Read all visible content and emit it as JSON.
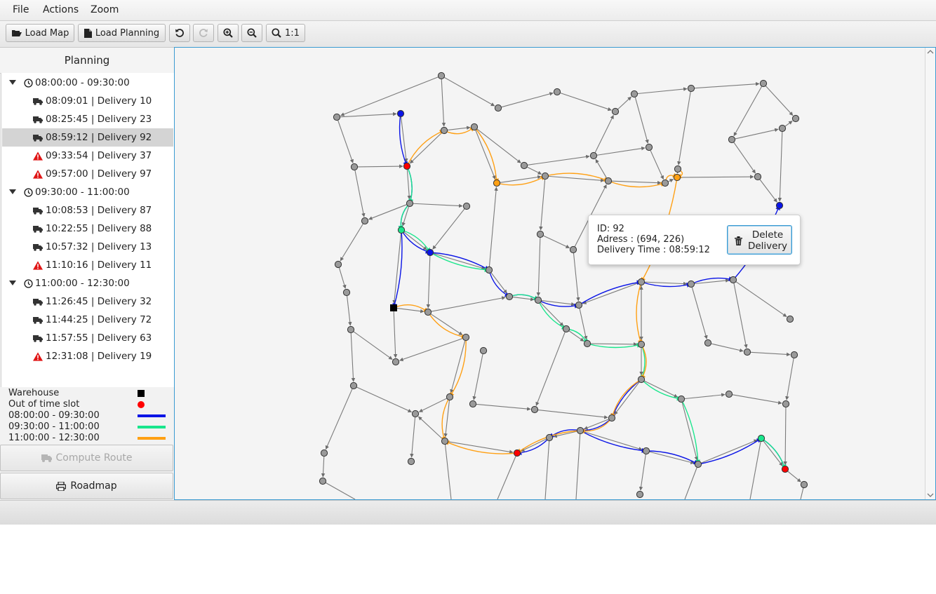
{
  "menu": {
    "file": "File",
    "actions": "Actions",
    "zoom": "Zoom"
  },
  "toolbar": {
    "load_map": "Load Map",
    "load_planning": "Load Planning",
    "zoom_reset": "1:1"
  },
  "sidebar": {
    "title": "Planning",
    "groups": [
      {
        "label": "08:00:00 - 09:30:00",
        "items": [
          {
            "label": "08:09:01 | Delivery 10",
            "status": "truck"
          },
          {
            "label": "08:25:45 | Delivery 23",
            "status": "truck"
          },
          {
            "label": "08:59:12 | Delivery 92",
            "status": "truck"
          },
          {
            "label": "09:33:54 | Delivery 37",
            "status": "warning"
          },
          {
            "label": "09:57:00 | Delivery 97",
            "status": "warning"
          }
        ]
      },
      {
        "label": "09:30:00 - 11:00:00",
        "items": [
          {
            "label": "10:08:53 | Delivery 87",
            "status": "truck"
          },
          {
            "label": "10:22:55 | Delivery 88",
            "status": "truck"
          },
          {
            "label": "10:57:32 | Delivery 13",
            "status": "truck"
          },
          {
            "label": "11:10:16 | Delivery 11",
            "status": "warning"
          }
        ]
      },
      {
        "label": "11:00:00 - 12:30:00",
        "items": [
          {
            "label": "11:26:45 | Delivery 32",
            "status": "truck"
          },
          {
            "label": "11:44:25 | Delivery 72",
            "status": "truck"
          },
          {
            "label": "11:57:55 | Delivery 63",
            "status": "truck"
          },
          {
            "label": "12:31:08 | Delivery 19",
            "status": "warning"
          }
        ]
      }
    ],
    "selected_item": "08:59:12 | Delivery 92",
    "legend": [
      {
        "label": "Warehouse",
        "marker": "square",
        "color": "#000000"
      },
      {
        "label": "Out of time slot",
        "marker": "circle",
        "color": "#ff0000"
      },
      {
        "label": "08:00:00 - 09:30:00",
        "marker": "line",
        "color": "#0a14e6"
      },
      {
        "label": "09:30:00 - 11:00:00",
        "marker": "line",
        "color": "#19e68c"
      },
      {
        "label": "11:00:00 - 12:30:00",
        "marker": "line",
        "color": "#ffa014"
      }
    ],
    "compute_route": "Compute Route",
    "roadmap": "Roadmap"
  },
  "tooltip": {
    "id_line": "ID: 92",
    "address_line": "Adress : (694, 226)",
    "time_line": "Delivery Time : 08:59:12",
    "delete_label_1": "Delete",
    "delete_label_2": "Delivery"
  },
  "colors": {
    "accent": "#3a9bd2",
    "slot1": "#0a14e6",
    "slot2": "#19e68c",
    "slot3": "#ffa014",
    "out_of_slot": "#ff0000",
    "node": "#9a9a9a",
    "warehouse": "#000000"
  }
}
